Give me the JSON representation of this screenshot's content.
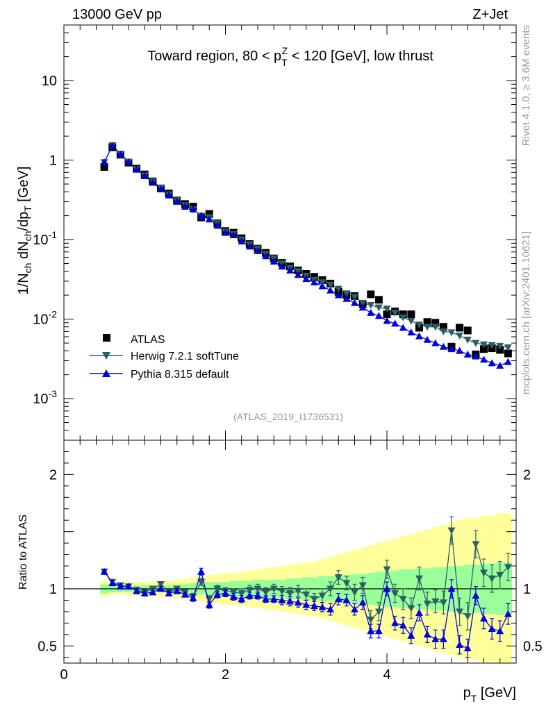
{
  "header": {
    "energy_label": "13000 GeV pp",
    "process_label": "Z+Jet",
    "analysis_id": "(ATLAS_2019_I1736531)",
    "rivet_label": "Rivet 4.1.0, ≥ 3.6M events",
    "site_label": "mcplots.cern.ch [arXiv:2401.10621]"
  },
  "chart_data": [
    {
      "type": "scatter",
      "panel": "main",
      "title": "Toward region, 80 < p_T^Z < 120 [GeV], low thrust",
      "ylabel": "1/N_ch dN_ch/dp_T [GeV]",
      "yscale": "log",
      "ylim": [
        0.0003,
        50
      ],
      "xlim": [
        0,
        5.6
      ],
      "ytick_labels": [
        "10",
        "1",
        "10^-1",
        "10^-2",
        "10^-3"
      ],
      "legend": {
        "placement": "lower-left",
        "entries": [
          "ATLAS",
          "Herwig 7.2.1 softTune",
          "Pythia 8.315 default"
        ]
      },
      "x": [
        0.5,
        0.6,
        0.7,
        0.8,
        0.9,
        1.0,
        1.1,
        1.2,
        1.3,
        1.4,
        1.5,
        1.6,
        1.7,
        1.8,
        1.9,
        2.0,
        2.1,
        2.2,
        2.3,
        2.4,
        2.5,
        2.6,
        2.7,
        2.8,
        2.9,
        3.0,
        3.1,
        3.2,
        3.3,
        3.4,
        3.5,
        3.6,
        3.7,
        3.8,
        3.9,
        4.0,
        4.1,
        4.2,
        4.3,
        4.4,
        4.5,
        4.6,
        4.7,
        4.8,
        4.9,
        5.0,
        5.1,
        5.2,
        5.3,
        5.4,
        5.5
      ],
      "series": [
        {
          "name": "ATLAS",
          "marker": "square",
          "color": "#000000",
          "values": [
            0.82,
            1.45,
            1.17,
            0.93,
            0.78,
            0.66,
            0.54,
            0.44,
            0.38,
            0.31,
            0.28,
            0.26,
            0.19,
            0.21,
            0.16,
            0.128,
            0.122,
            0.104,
            0.088,
            0.077,
            0.068,
            0.058,
            0.051,
            0.046,
            0.041,
            0.037,
            0.034,
            0.031,
            0.028,
            0.022,
            0.02,
            0.0195,
            0.0155,
            0.0205,
            0.0175,
            0.0115,
            0.0125,
            0.0115,
            0.0115,
            0.0078,
            0.0092,
            0.009,
            0.008,
            0.0045,
            0.0078,
            0.0072,
            0.0036,
            0.0042,
            0.0043,
            0.0041,
            0.0037
          ]
        },
        {
          "name": "Herwig 7.2.1 softTune",
          "marker": "triangle-down",
          "color": "#2a5f66",
          "values": [
            0.94,
            1.53,
            1.2,
            0.95,
            0.77,
            0.64,
            0.54,
            0.45,
            0.37,
            0.31,
            0.27,
            0.24,
            0.2,
            0.19,
            0.16,
            0.126,
            0.118,
            0.1,
            0.087,
            0.077,
            0.066,
            0.058,
            0.05,
            0.044,
            0.04,
            0.035,
            0.031,
            0.029,
            0.027,
            0.024,
            0.021,
            0.019,
            0.016,
            0.015,
            0.014,
            0.0135,
            0.012,
            0.0105,
            0.0095,
            0.0085,
            0.008,
            0.008,
            0.007,
            0.0068,
            0.0062,
            0.0055,
            0.005,
            0.0048,
            0.0047,
            0.0046,
            0.0044
          ]
        },
        {
          "name": "Pythia 8.315 default",
          "marker": "triangle-up",
          "color": "#0000dd",
          "values": [
            0.94,
            1.52,
            1.18,
            0.95,
            0.76,
            0.63,
            0.52,
            0.43,
            0.36,
            0.3,
            0.26,
            0.24,
            0.2,
            0.18,
            0.15,
            0.122,
            0.114,
            0.095,
            0.082,
            0.072,
            0.062,
            0.053,
            0.046,
            0.041,
            0.036,
            0.032,
            0.029,
            0.026,
            0.023,
            0.02,
            0.018,
            0.016,
            0.014,
            0.012,
            0.011,
            0.0095,
            0.0088,
            0.0078,
            0.0068,
            0.0061,
            0.0055,
            0.005,
            0.0045,
            0.0042,
            0.004,
            0.0036,
            0.0034,
            0.0031,
            0.0028,
            0.0026,
            0.0029
          ]
        }
      ]
    },
    {
      "type": "scatter",
      "panel": "ratio",
      "ylabel": "Ratio to ATLAS",
      "xlabel": "p_T [GeV]",
      "ylim": [
        0.35,
        2.3
      ],
      "xlim": [
        0,
        5.6
      ],
      "ytick_labels": [
        "2",
        "1",
        "0.5"
      ],
      "xtick_labels": [
        "0",
        "2",
        "4"
      ],
      "reference_line": 1,
      "x": [
        0.5,
        0.6,
        0.7,
        0.8,
        0.9,
        1.0,
        1.1,
        1.2,
        1.3,
        1.4,
        1.5,
        1.6,
        1.7,
        1.8,
        1.9,
        2.0,
        2.1,
        2.2,
        2.3,
        2.4,
        2.5,
        2.6,
        2.7,
        2.8,
        2.9,
        3.0,
        3.1,
        3.2,
        3.3,
        3.4,
        3.5,
        3.6,
        3.7,
        3.8,
        3.9,
        4.0,
        4.1,
        4.2,
        4.3,
        4.4,
        4.5,
        4.6,
        4.7,
        4.8,
        4.9,
        5.0,
        5.1,
        5.2,
        5.3,
        5.4,
        5.5
      ],
      "band_stat": [
        0.04,
        0.03,
        0.03,
        0.03,
        0.03,
        0.03,
        0.03,
        0.03,
        0.03,
        0.04,
        0.04,
        0.05,
        0.05,
        0.06,
        0.06,
        0.06,
        0.07,
        0.07,
        0.07,
        0.08,
        0.08,
        0.08,
        0.08,
        0.09,
        0.09,
        0.1,
        0.1,
        0.11,
        0.11,
        0.12,
        0.12,
        0.13,
        0.13,
        0.14,
        0.15,
        0.16,
        0.16,
        0.17,
        0.17,
        0.18,
        0.18,
        0.19,
        0.19,
        0.2,
        0.2,
        0.21,
        0.21,
        0.22,
        0.22,
        0.23,
        0.23
      ],
      "band_total": [
        0.07,
        0.05,
        0.05,
        0.06,
        0.06,
        0.06,
        0.07,
        0.07,
        0.07,
        0.08,
        0.09,
        0.1,
        0.11,
        0.12,
        0.13,
        0.14,
        0.14,
        0.15,
        0.16,
        0.17,
        0.18,
        0.19,
        0.2,
        0.21,
        0.22,
        0.23,
        0.24,
        0.26,
        0.28,
        0.3,
        0.32,
        0.34,
        0.36,
        0.38,
        0.4,
        0.42,
        0.44,
        0.46,
        0.48,
        0.5,
        0.52,
        0.54,
        0.56,
        0.58,
        0.6,
        0.62,
        0.62,
        0.64,
        0.64,
        0.66,
        0.66
      ],
      "series": [
        {
          "name": "Herwig 7.2.1 softTune",
          "color": "#2a5f66",
          "values": [
            1.15,
            1.06,
            1.03,
            1.02,
            0.99,
            0.97,
            1.0,
            1.04,
            0.97,
            1.0,
            0.97,
            0.93,
            1.06,
            0.91,
            1.0,
            0.98,
            0.97,
            0.96,
            0.99,
            1.0,
            0.97,
            1.0,
            0.98,
            0.96,
            0.98,
            0.95,
            0.91,
            0.94,
            1.0,
            1.1,
            1.05,
            0.97,
            1.03,
            0.73,
            0.8,
            1.17,
            0.96,
            0.91,
            0.83,
            1.09,
            0.87,
            0.89,
            0.88,
            1.51,
            0.8,
            0.76,
            1.39,
            1.14,
            1.09,
            1.12,
            1.19
          ],
          "errors": [
            0.02,
            0.02,
            0.02,
            0.02,
            0.02,
            0.02,
            0.02,
            0.02,
            0.02,
            0.02,
            0.02,
            0.03,
            0.03,
            0.03,
            0.03,
            0.03,
            0.03,
            0.04,
            0.04,
            0.04,
            0.04,
            0.04,
            0.04,
            0.05,
            0.05,
            0.05,
            0.05,
            0.06,
            0.06,
            0.06,
            0.06,
            0.07,
            0.07,
            0.08,
            0.08,
            0.08,
            0.08,
            0.09,
            0.09,
            0.1,
            0.1,
            0.1,
            0.1,
            0.12,
            0.12,
            0.12,
            0.12,
            0.12,
            0.12,
            0.12,
            0.12
          ]
        },
        {
          "name": "Pythia 8.315 default",
          "color": "#0000dd",
          "values": [
            1.15,
            1.05,
            1.02,
            1.02,
            0.98,
            0.96,
            0.97,
            1.0,
            0.96,
            0.98,
            0.95,
            0.92,
            1.15,
            0.86,
            0.95,
            0.96,
            0.93,
            0.91,
            0.94,
            0.94,
            0.91,
            0.91,
            0.9,
            0.89,
            0.88,
            0.86,
            0.85,
            0.84,
            0.82,
            0.91,
            0.9,
            0.82,
            0.88,
            0.63,
            0.63,
            1.0,
            0.7,
            0.68,
            0.59,
            0.79,
            0.6,
            0.56,
            0.56,
            1.0,
            0.51,
            0.48,
            0.94,
            0.74,
            0.65,
            0.63,
            0.78
          ],
          "errors": [
            0.02,
            0.02,
            0.02,
            0.02,
            0.02,
            0.02,
            0.02,
            0.02,
            0.02,
            0.02,
            0.02,
            0.03,
            0.03,
            0.03,
            0.03,
            0.03,
            0.03,
            0.03,
            0.03,
            0.03,
            0.03,
            0.03,
            0.04,
            0.04,
            0.04,
            0.04,
            0.04,
            0.04,
            0.05,
            0.05,
            0.05,
            0.05,
            0.06,
            0.06,
            0.06,
            0.06,
            0.06,
            0.07,
            0.07,
            0.07,
            0.07,
            0.08,
            0.08,
            0.08,
            0.08,
            0.08,
            0.08,
            0.09,
            0.09,
            0.09,
            0.09
          ]
        }
      ]
    }
  ]
}
